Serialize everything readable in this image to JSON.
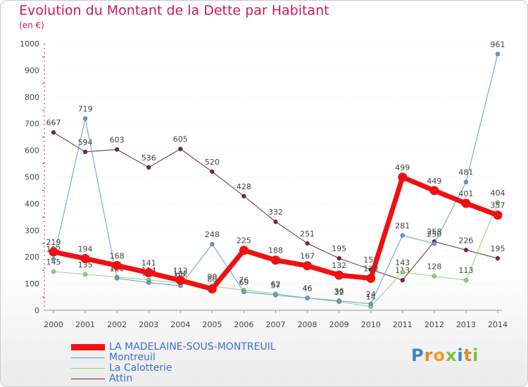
{
  "header": {
    "title": "Evolution du Montant de la Dette par Habitant",
    "subtitle": "(en €)"
  },
  "logo": {
    "text": "Proxiti"
  },
  "chart_data": {
    "type": "line",
    "title": "Evolution du Montant de la Dette par Habitant",
    "subtitle": "(en €)",
    "xlabel": "",
    "ylabel": "",
    "ylim": [
      0,
      1000
    ],
    "yticks": [
      "0",
      "100",
      "200",
      "300",
      "400",
      "500",
      "600",
      "700",
      "800",
      "900",
      "1000"
    ],
    "categories": [
      "2000",
      "2001",
      "2002",
      "2003",
      "2004",
      "2005",
      "2006",
      "2007",
      "2008",
      "2009",
      "2010",
      "2011",
      "2012",
      "2013",
      "2014"
    ],
    "grid": true,
    "legend_position": "bottom-left",
    "series": [
      {
        "name": "Attin",
        "color": "#7a2530",
        "values": [
          667,
          594,
          603,
          536,
          605,
          520,
          428,
          332,
          251,
          195,
          153,
          113,
          258,
          226,
          195
        ]
      },
      {
        "name": "La Calotterie",
        "color": "#8ed67a",
        "values": [
          145,
          135,
          125,
          114,
          102,
          90,
          76,
          62,
          46,
          32,
          14,
          143,
          128,
          113,
          404
        ]
      },
      {
        "name": "Montreuil",
        "color": "#5b9fd4",
        "values": [
          192,
          719,
          120,
          104,
          92,
          248,
          69,
          57,
          46,
          36,
          24,
          281,
          250,
          481,
          961
        ]
      },
      {
        "name": "LA MADELAINE-SOUS-MONTREUIL",
        "color": "#f01010",
        "values": [
          219,
          194,
          168,
          141,
          112,
          80,
          225,
          188,
          167,
          132,
          120,
          499,
          449,
          401,
          357
        ]
      }
    ]
  }
}
